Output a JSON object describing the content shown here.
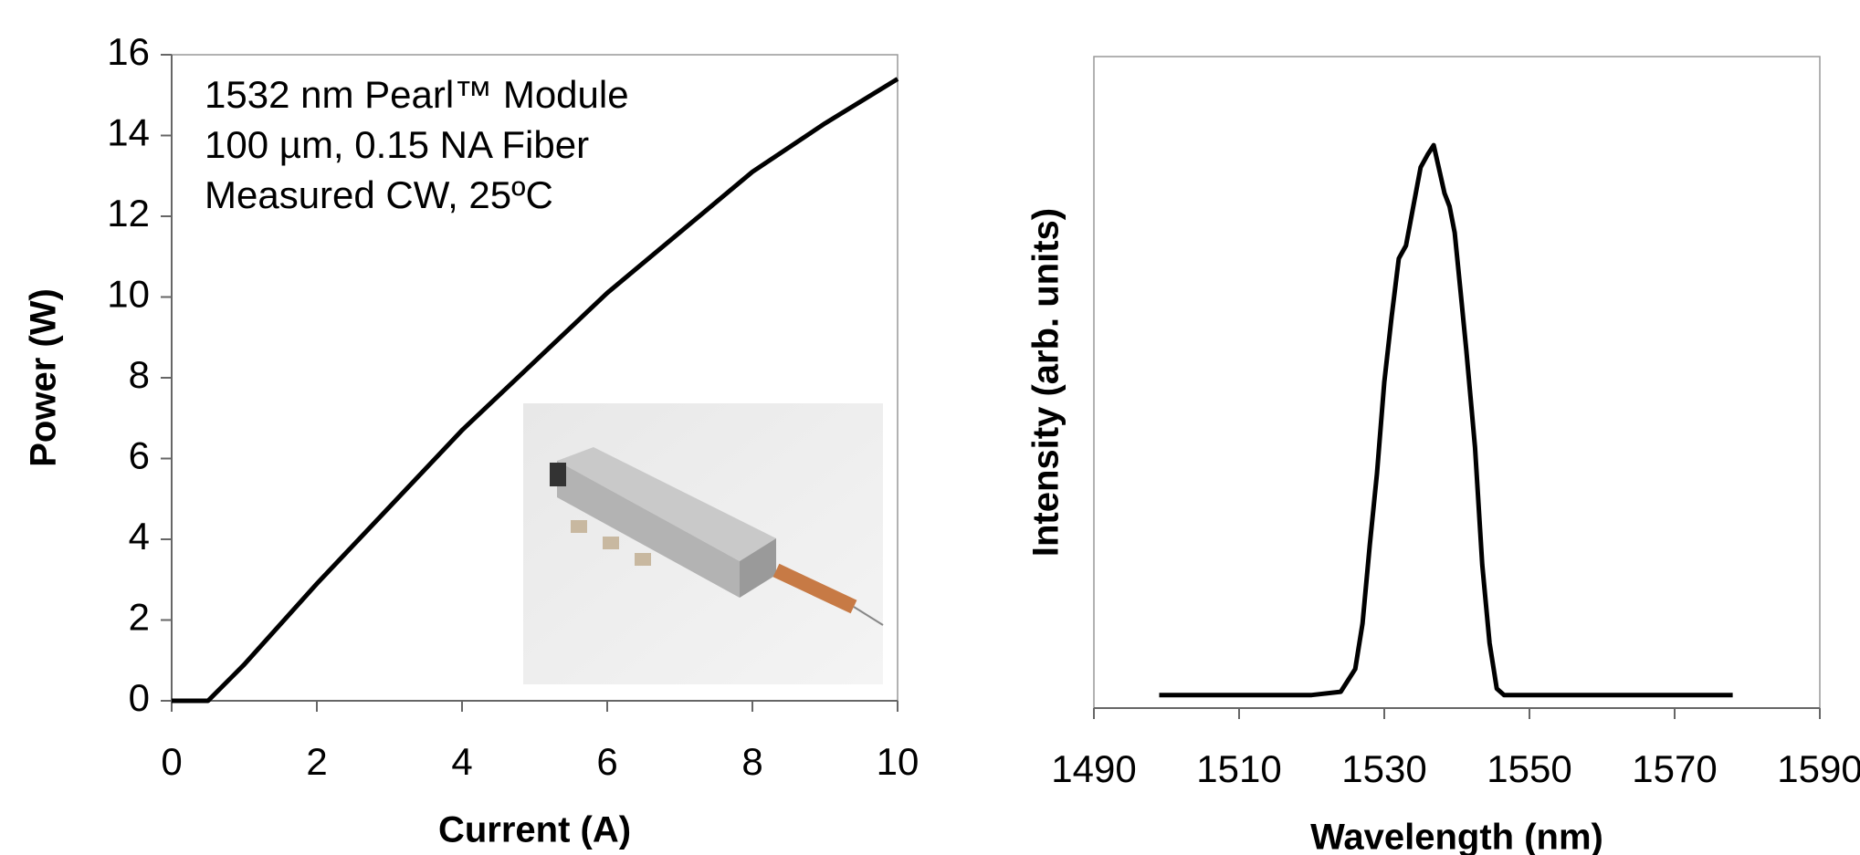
{
  "chart_data": [
    {
      "type": "line",
      "x_label": "Current (A)",
      "y_label": "Power (W)",
      "annotations": [
        "1532 nm Pearl™ Module",
        "100 µm, 0.15 NA Fiber",
        "Measured CW, 25ºC"
      ],
      "x": [
        0,
        0.5,
        1,
        2,
        3,
        4,
        5,
        6,
        7,
        8,
        9,
        10
      ],
      "series": [
        {
          "color": "#000000",
          "values": [
            0,
            0,
            0.9,
            2.9,
            4.8,
            6.7,
            8.4,
            10.1,
            11.6,
            13.1,
            14.3,
            15.4
          ]
        }
      ],
      "xlim": [
        0,
        10
      ],
      "xticks": [
        0,
        2,
        4,
        6,
        8,
        10
      ],
      "ylim": [
        0,
        16
      ],
      "yticks": [
        0,
        2,
        4,
        6,
        8,
        10,
        12,
        14,
        16
      ],
      "grid": false
    },
    {
      "type": "line",
      "x_label": "Wavelength (nm)",
      "y_label": "Intensity (arb. units)",
      "x": [
        1499,
        1510,
        1520,
        1524,
        1526,
        1527,
        1528,
        1529,
        1530,
        1531,
        1532,
        1533,
        1534,
        1535,
        1536,
        1536.8,
        1537.5,
        1538.3,
        1539,
        1539.7,
        1540.5,
        1541.3,
        1542.5,
        1543.5,
        1544.5,
        1545.5,
        1546.5,
        1560,
        1570,
        1578
      ],
      "series": [
        {
          "color": "#000000",
          "values": [
            0.02,
            0.02,
            0.02,
            0.025,
            0.06,
            0.13,
            0.25,
            0.36,
            0.5,
            0.6,
            0.69,
            0.71,
            0.77,
            0.83,
            0.85,
            0.864,
            0.83,
            0.79,
            0.77,
            0.73,
            0.64,
            0.55,
            0.4,
            0.22,
            0.1,
            0.03,
            0.02,
            0.02,
            0.02,
            0.02
          ]
        }
      ],
      "xlim": [
        1490,
        1590
      ],
      "xticks": [
        1490,
        1510,
        1530,
        1550,
        1570,
        1590
      ],
      "ylim": [
        0,
        1
      ],
      "grid": false
    }
  ]
}
